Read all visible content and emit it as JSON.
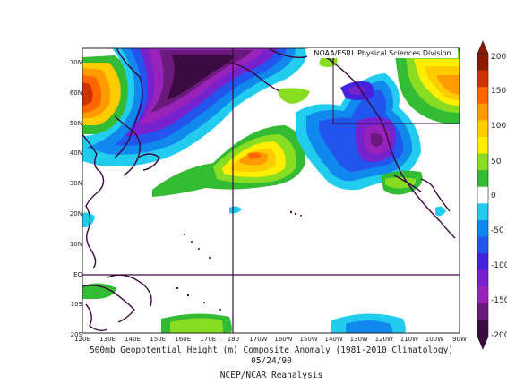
{
  "header": {
    "credit": "NOAA/ESRL Physical Sciences Division"
  },
  "caption": {
    "line1": "500mb Geopotential Height (m) Composite Anomaly (1981-2010 Climatology)",
    "line2": "05/24/90",
    "line3": "NCEP/NCAR Reanalysis"
  },
  "axes": {
    "lat_labels": [
      "70N",
      "60N",
      "50N",
      "40N",
      "30N",
      "20N",
      "10N",
      "EQ",
      "10S",
      "20S"
    ],
    "lon_labels": [
      "120E",
      "130E",
      "140E",
      "150E",
      "160E",
      "170E",
      "180",
      "170W",
      "160W",
      "150W",
      "140W",
      "130W",
      "120W",
      "110W",
      "100W",
      "90W"
    ]
  },
  "colorbar": {
    "labels": [
      "200",
      "150",
      "100",
      "50",
      "0",
      "-50",
      "-100",
      "-150",
      "-200"
    ],
    "colors": [
      "#8b1a00",
      "#cc3300",
      "#ff6600",
      "#ff9a00",
      "#ffcc00",
      "#ffee00",
      "#88dd22",
      "#33bb33",
      "#ffffff",
      "#22ccee",
      "#1188ee",
      "#2255ee",
      "#4422dd",
      "#7722cc",
      "#9922bb",
      "#6a1a7a",
      "#3a0a40"
    ]
  }
}
